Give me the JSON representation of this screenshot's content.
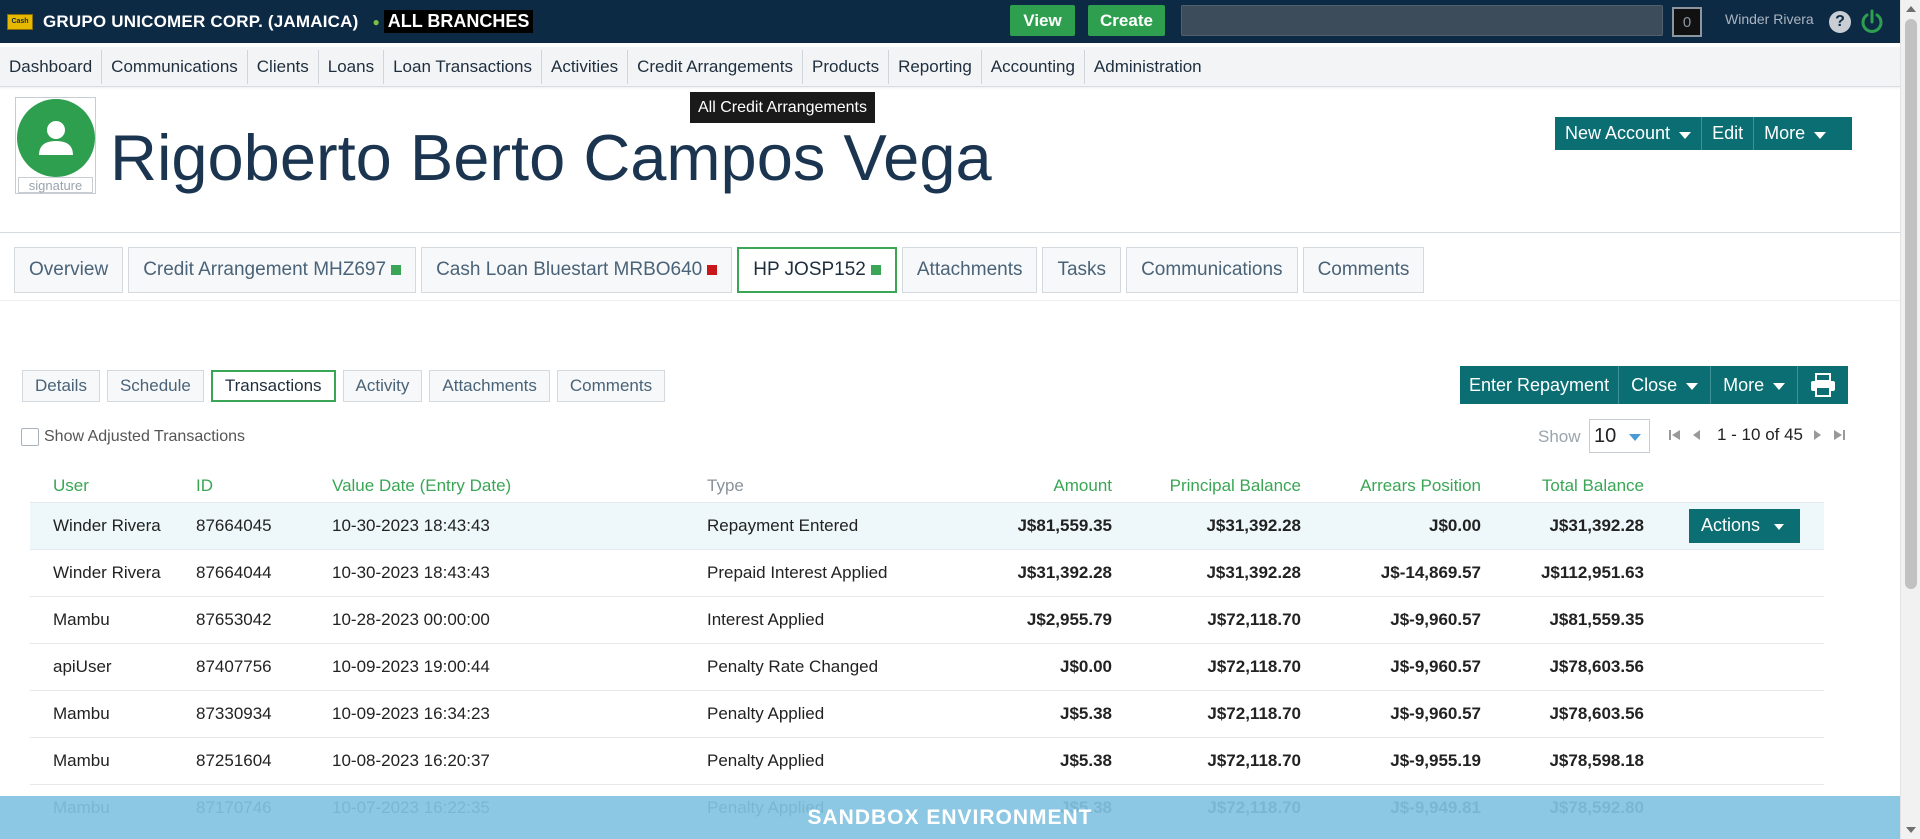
{
  "topbar": {
    "company": "GRUPO UNICOMER CORP. (JAMAICA)",
    "branch": "ALL BRANCHES",
    "view_label": "View",
    "create_label": "Create",
    "search_placeholder": "",
    "notification_count": "0",
    "user_name": "Winder Rivera",
    "help_label": "?"
  },
  "nav": {
    "items": [
      "Dashboard",
      "Communications",
      "Clients",
      "Loans",
      "Loan Transactions",
      "Activities",
      "Credit Arrangements",
      "Products",
      "Reporting",
      "Accounting",
      "Administration"
    ],
    "tooltip": "All Credit Arrangements"
  },
  "client": {
    "name": "Rigoberto Berto Campos Vega",
    "signature_label": "signature",
    "actions": {
      "new_account": "New Account",
      "edit": "Edit",
      "more": "More"
    }
  },
  "main_tabs": [
    {
      "label": "Overview",
      "status": ""
    },
    {
      "label": "Credit Arrangement MHZ697",
      "status": "green"
    },
    {
      "label": "Cash Loan Bluestart MRBO640",
      "status": "red"
    },
    {
      "label": "HP JOSP152",
      "status": "green",
      "active": true
    },
    {
      "label": "Attachments",
      "status": ""
    },
    {
      "label": "Tasks",
      "status": ""
    },
    {
      "label": "Communications",
      "status": ""
    },
    {
      "label": "Comments",
      "status": ""
    }
  ],
  "sub_tabs": [
    {
      "label": "Details"
    },
    {
      "label": "Schedule"
    },
    {
      "label": "Transactions",
      "active": true
    },
    {
      "label": "Activity"
    },
    {
      "label": "Attachments"
    },
    {
      "label": "Comments"
    }
  ],
  "tx_actions": {
    "enter_repayment": "Enter Repayment",
    "close": "Close",
    "more": "More"
  },
  "filters": {
    "show_adjusted": "Show Adjusted Transactions",
    "show_label": "Show",
    "page_size": "10",
    "page_range": "1 - 10 of 45"
  },
  "table": {
    "headers": {
      "user": "User",
      "id": "ID",
      "value_date": "Value Date (Entry Date)",
      "type": "Type",
      "amount": "Amount",
      "principal_balance": "Principal Balance",
      "arrears_position": "Arrears Position",
      "total_balance": "Total Balance"
    },
    "actions_label": "Actions",
    "rows": [
      {
        "user": "Winder Rivera",
        "user_link": true,
        "id": "87664045",
        "date": "10-30-2023 18:43:43",
        "type": "Repayment Entered",
        "amount": "J$81,559.35",
        "principal": "J$31,392.28",
        "arrears": "J$0.00",
        "arrears_neg": false,
        "total": "J$31,392.28"
      },
      {
        "user": "Winder Rivera",
        "user_link": true,
        "id": "87664044",
        "date": "10-30-2023 18:43:43",
        "type": "Prepaid Interest Applied",
        "amount": "J$31,392.28",
        "principal": "J$31,392.28",
        "arrears": "J$-14,869.57",
        "arrears_neg": true,
        "total": "J$112,951.63"
      },
      {
        "user": "Mambu",
        "user_link": false,
        "id": "87653042",
        "date": "10-28-2023 00:00:00",
        "type": "Interest Applied",
        "amount": "J$2,955.79",
        "principal": "J$72,118.70",
        "arrears": "J$-9,960.57",
        "arrears_neg": true,
        "total": "J$81,559.35"
      },
      {
        "user": "apiUser",
        "user_link": true,
        "id": "87407756",
        "date": "10-09-2023 19:00:44",
        "type": "Penalty Rate Changed",
        "amount": "J$0.00",
        "principal": "J$72,118.70",
        "arrears": "J$-9,960.57",
        "arrears_neg": true,
        "total": "J$78,603.56"
      },
      {
        "user": "Mambu",
        "user_link": false,
        "id": "87330934",
        "date": "10-09-2023 16:34:23",
        "type": "Penalty Applied",
        "amount": "J$5.38",
        "principal": "J$72,118.70",
        "arrears": "J$-9,960.57",
        "arrears_neg": true,
        "total": "J$78,603.56"
      },
      {
        "user": "Mambu",
        "user_link": false,
        "id": "87251604",
        "date": "10-08-2023 16:20:37",
        "type": "Penalty Applied",
        "amount": "J$5.38",
        "principal": "J$72,118.70",
        "arrears": "J$-9,955.19",
        "arrears_neg": true,
        "total": "J$78,598.18"
      },
      {
        "user": "Mambu",
        "user_link": false,
        "id": "87170746",
        "date": "10-07-2023 16:22:35",
        "type": "Penalty Applied",
        "amount": "J$5.38",
        "principal": "J$72,118.70",
        "arrears": "J$-9,949.81",
        "arrears_neg": true,
        "total": "J$78,592.80"
      }
    ]
  },
  "banner": {
    "text": "SANDBOX ENVIRONMENT"
  },
  "colors": {
    "topbar": "#0d2a45",
    "accent_teal": "#0b6e73",
    "accent_green": "#2e9e4f",
    "positive": "#1e7a2e",
    "negative": "#8b1a1a",
    "banner": "#82c3e1"
  }
}
